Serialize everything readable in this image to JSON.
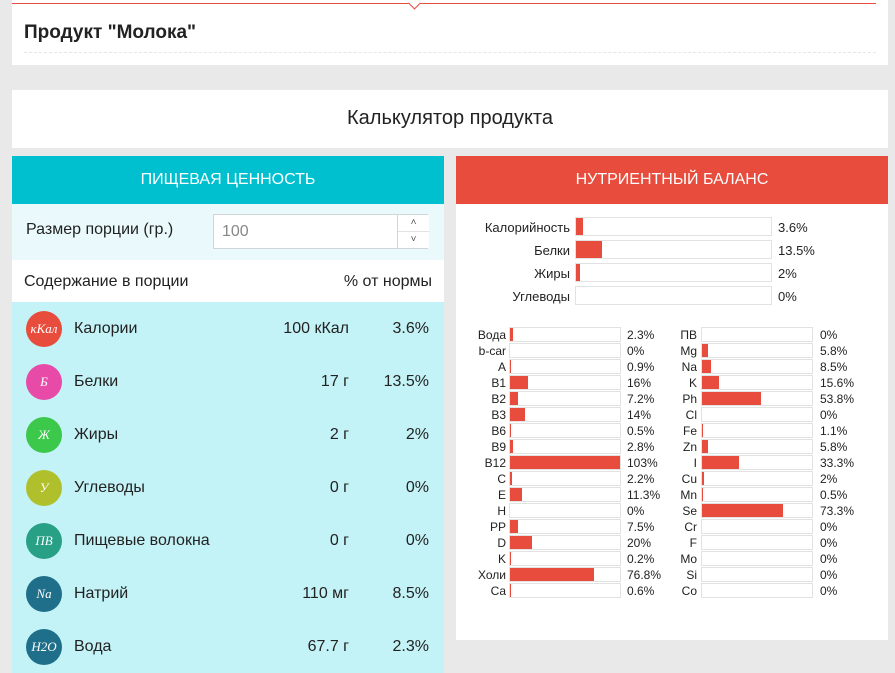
{
  "product": {
    "title": "Продукт \"Молока\""
  },
  "calculator": {
    "title": "Калькулятор продукта"
  },
  "nutrition": {
    "header": "ПИЩЕВАЯ ЦЕННОСТЬ",
    "portion_label": "Размер порции (гр.)",
    "portion_value": "100",
    "content_label": "Содержание в порции",
    "norm_label": "% от нормы",
    "items": [
      {
        "icon": "кКал",
        "color": "#e74c3c",
        "name": "Калории",
        "amount": "100 кКал",
        "pct": "3.6%"
      },
      {
        "icon": "Б",
        "color": "#e84aa8",
        "name": "Белки",
        "amount": "17 г",
        "pct": "13.5%"
      },
      {
        "icon": "Ж",
        "color": "#3cc84a",
        "name": "Жиры",
        "amount": "2 г",
        "pct": "2%"
      },
      {
        "icon": "У",
        "color": "#b0c02c",
        "name": "Углеводы",
        "amount": "0 г",
        "pct": "0%"
      },
      {
        "icon": "ПВ",
        "color": "#27a086",
        "name": "Пищевые волокна",
        "amount": "0 г",
        "pct": "0%"
      },
      {
        "icon": "Na",
        "color": "#1f6f8a",
        "name": "Натрий",
        "amount": "110 мг",
        "pct": "8.5%"
      },
      {
        "icon": "H2O",
        "color": "#1f6f8a",
        "name": "Вода",
        "amount": "67.7 г",
        "pct": "2.3%"
      }
    ]
  },
  "balance": {
    "header": "НУТРИЕНТНЫЙ БАЛАНС",
    "macros": [
      {
        "label": "Калорийность",
        "value": 3.6,
        "pct": "3.6%"
      },
      {
        "label": "Белки",
        "value": 13.5,
        "pct": "13.5%"
      },
      {
        "label": "Жиры",
        "value": 2,
        "pct": "2%"
      },
      {
        "label": "Углеводы",
        "value": 0,
        "pct": "0%"
      }
    ],
    "vitamins": [
      {
        "label": "Вода",
        "value": 2.3,
        "pct": "2.3%"
      },
      {
        "label": "b-car",
        "value": 0,
        "pct": "0%"
      },
      {
        "label": "A",
        "value": 0.9,
        "pct": "0.9%"
      },
      {
        "label": "B1",
        "value": 16,
        "pct": "16%"
      },
      {
        "label": "B2",
        "value": 7.2,
        "pct": "7.2%"
      },
      {
        "label": "B3",
        "value": 14,
        "pct": "14%"
      },
      {
        "label": "B6",
        "value": 0.5,
        "pct": "0.5%"
      },
      {
        "label": "B9",
        "value": 2.8,
        "pct": "2.8%"
      },
      {
        "label": "B12",
        "value": 103,
        "pct": "103%"
      },
      {
        "label": "C",
        "value": 2.2,
        "pct": "2.2%"
      },
      {
        "label": "E",
        "value": 11.3,
        "pct": "11.3%"
      },
      {
        "label": "H",
        "value": 0,
        "pct": "0%"
      },
      {
        "label": "PP",
        "value": 7.5,
        "pct": "7.5%"
      },
      {
        "label": "D",
        "value": 20,
        "pct": "20%"
      },
      {
        "label": "K",
        "value": 0.2,
        "pct": "0.2%"
      },
      {
        "label": "Холи",
        "value": 76.8,
        "pct": "76.8%"
      },
      {
        "label": "Ca",
        "value": 0.6,
        "pct": "0.6%"
      }
    ],
    "minerals": [
      {
        "label": "ПВ",
        "value": 0,
        "pct": "0%"
      },
      {
        "label": "Mg",
        "value": 5.8,
        "pct": "5.8%"
      },
      {
        "label": "Na",
        "value": 8.5,
        "pct": "8.5%"
      },
      {
        "label": "K",
        "value": 15.6,
        "pct": "15.6%"
      },
      {
        "label": "Ph",
        "value": 53.8,
        "pct": "53.8%"
      },
      {
        "label": "Cl",
        "value": 0,
        "pct": "0%"
      },
      {
        "label": "Fe",
        "value": 1.1,
        "pct": "1.1%"
      },
      {
        "label": "Zn",
        "value": 5.8,
        "pct": "5.8%"
      },
      {
        "label": "I",
        "value": 33.3,
        "pct": "33.3%"
      },
      {
        "label": "Cu",
        "value": 2,
        "pct": "2%"
      },
      {
        "label": "Mn",
        "value": 0.5,
        "pct": "0.5%"
      },
      {
        "label": "Se",
        "value": 73.3,
        "pct": "73.3%"
      },
      {
        "label": "Cr",
        "value": 0,
        "pct": "0%"
      },
      {
        "label": "F",
        "value": 0,
        "pct": "0%"
      },
      {
        "label": "Mo",
        "value": 0,
        "pct": "0%"
      },
      {
        "label": "Si",
        "value": 0,
        "pct": "0%"
      },
      {
        "label": "Co",
        "value": 0,
        "pct": "0%"
      }
    ]
  },
  "colors": {
    "accent_cyan": "#00c0d0",
    "accent_red": "#e74c3c",
    "panel_bg": "#c4f3f7"
  }
}
